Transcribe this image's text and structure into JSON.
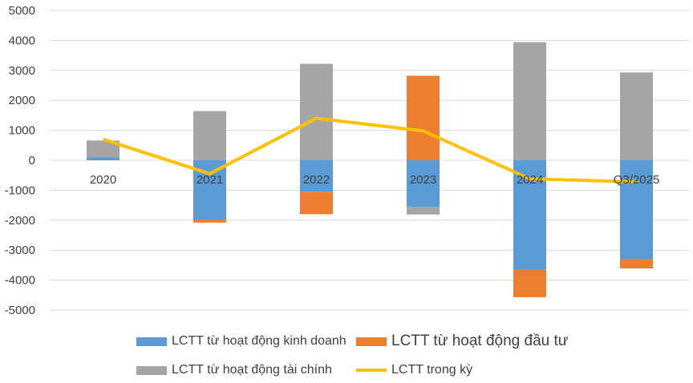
{
  "chart_data": {
    "type": "bar",
    "stacked": true,
    "title": "",
    "xlabel": "",
    "ylabel": "",
    "ylim": [
      -5000,
      5000
    ],
    "yticks": [
      5000,
      4000,
      3000,
      2000,
      1000,
      0,
      -1000,
      -2000,
      -3000,
      -4000,
      -5000
    ],
    "grid": true,
    "categories": [
      "2020",
      "2021",
      "2022",
      "2023",
      "2024",
      "Q3/2025"
    ],
    "series": [
      {
        "name": "LCTT từ hoạt động kinh doanh",
        "kind": "bar",
        "color": "#5B9BD5",
        "values": [
          100,
          -1980,
          -1050,
          -1560,
          -3650,
          -3300
        ]
      },
      {
        "name": "LCTT từ hoạt động đầu tư",
        "kind": "bar",
        "color": "#ED7D31",
        "values": [
          0,
          -100,
          -750,
          2820,
          -920,
          -310
        ]
      },
      {
        "name": "LCTT từ hoạt động tài chính",
        "kind": "bar",
        "color": "#A5A5A5",
        "values": [
          560,
          1640,
          3220,
          -250,
          3940,
          2930
        ]
      },
      {
        "name": "LCTT trong kỳ",
        "kind": "line",
        "color": "#FFC000",
        "values": [
          700,
          -450,
          1400,
          980,
          -620,
          -720
        ]
      }
    ],
    "legend": "bottom"
  }
}
